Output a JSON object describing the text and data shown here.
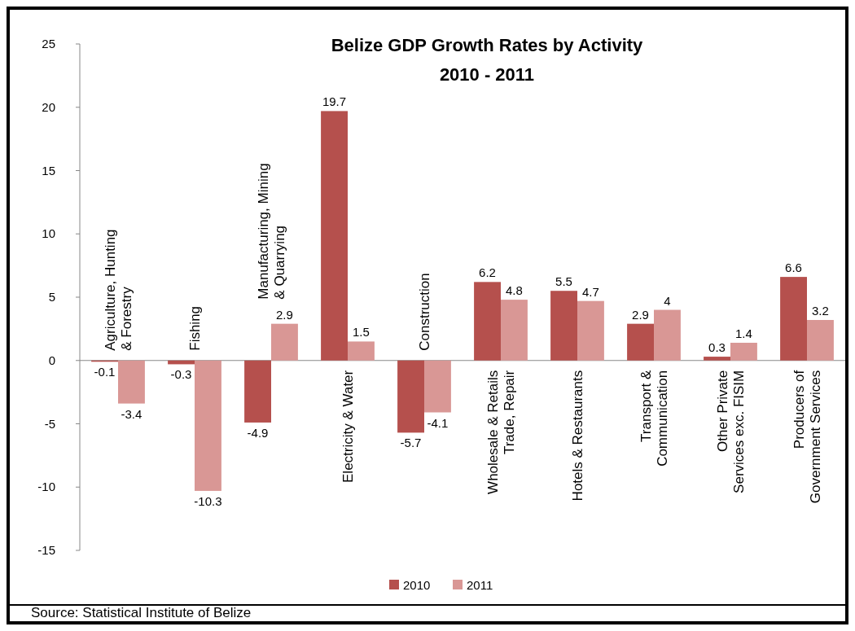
{
  "chart_data": {
    "type": "bar",
    "title": "Belize GDP Growth Rates by Activity\n2010 - 2011",
    "categories": [
      "Agriculture, Hunting & Forestry",
      "Fishing",
      "Manufacturing, Mining & Quarrying",
      "Electricity & Water",
      "Construction",
      "Wholesale & Retails Trade, Repair",
      "Hotels & Restaurants",
      "Transport & Communication",
      "Other Private Services exc. FISIM",
      "Producers of Government Services"
    ],
    "series": [
      {
        "name": "2010",
        "color": "#b5504d",
        "values": [
          -0.1,
          -0.3,
          -4.9,
          19.7,
          -5.7,
          6.2,
          5.5,
          2.9,
          0.3,
          6.6
        ]
      },
      {
        "name": "2011",
        "color": "#d99795",
        "values": [
          -3.4,
          -10.3,
          2.9,
          1.5,
          -4.1,
          4.8,
          4.7,
          4,
          1.4,
          3.2
        ]
      }
    ],
    "ylim": [
      -15,
      25
    ],
    "yticks": [
      -15,
      -10,
      -5,
      0,
      5,
      10,
      15,
      20,
      25
    ],
    "grid": false,
    "legend": "bottom",
    "data_labels": true,
    "annotations": [
      "Source: Statistical Institute of Belize"
    ]
  }
}
